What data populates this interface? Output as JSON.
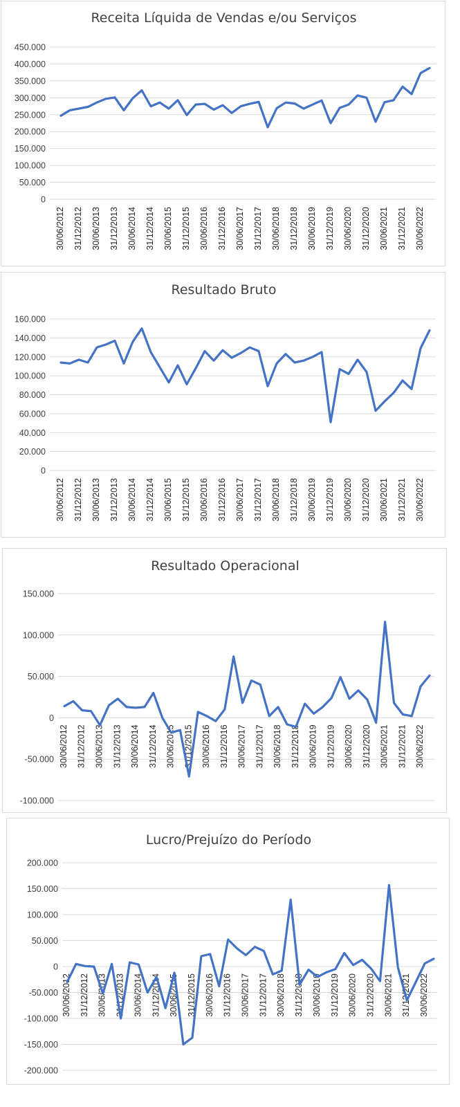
{
  "chart_data": [
    {
      "type": "line",
      "title": "Receita Líquida de Vendas e/ou Serviços",
      "xlabel": "",
      "ylabel": "",
      "ylim": [
        0,
        450000
      ],
      "grid": true,
      "y_ticks": [
        "450.000",
        "400.000",
        "350.000",
        "300.000",
        "250.000",
        "200.000",
        "150.000",
        "100.000",
        "50.000",
        "0"
      ],
      "y_tick_values": [
        450000,
        400000,
        350000,
        300000,
        250000,
        200000,
        150000,
        100000,
        50000,
        0
      ],
      "x_tick_labels": [
        "30/06/2012",
        "31/12/2012",
        "30/06/2013",
        "31/12/2013",
        "30/06/2014",
        "31/12/2014",
        "30/06/2015",
        "31/12/2015",
        "30/06/2016",
        "31/12/2016",
        "30/06/2017",
        "31/12/2017",
        "30/06/2018",
        "31/12/2018",
        "30/06/2019",
        "31/12/2019",
        "30/06/2020",
        "31/12/2020",
        "30/06/2021",
        "31/12/2021",
        "30/06/2022"
      ],
      "series": [
        {
          "name": "Receita Líquida de Vendas e/ou Serviços",
          "values": [
            247000,
            263000,
            268000,
            273000,
            286000,
            297000,
            301000,
            263000,
            299000,
            322000,
            275000,
            286000,
            268000,
            293000,
            249000,
            280000,
            282000,
            265000,
            278000,
            255000,
            275000,
            282000,
            288000,
            213000,
            269000,
            286000,
            283000,
            268000,
            280000,
            292000,
            225000,
            270000,
            280000,
            307000,
            300000,
            229000,
            287000,
            293000,
            333000,
            311000,
            373000,
            388000
          ]
        }
      ]
    },
    {
      "type": "line",
      "title": "Resultado Bruto",
      "xlabel": "",
      "ylabel": "",
      "ylim": [
        0,
        160000
      ],
      "grid": true,
      "y_ticks": [
        "160.000",
        "140.000",
        "120.000",
        "100.000",
        "80.000",
        "60.000",
        "40.000",
        "20.000",
        "0"
      ],
      "y_tick_values": [
        160000,
        140000,
        120000,
        100000,
        80000,
        60000,
        40000,
        20000,
        0
      ],
      "x_tick_labels": [
        "30/06/2012",
        "31/12/2012",
        "30/06/2013",
        "31/12/2013",
        "30/06/2014",
        "31/12/2014",
        "30/06/2015",
        "31/12/2015",
        "30/06/2016",
        "31/12/2016",
        "30/06/2017",
        "31/12/2017",
        "30/06/2018",
        "31/12/2018",
        "30/06/2019",
        "31/12/2019",
        "30/06/2020",
        "31/12/2020",
        "30/06/2021",
        "31/12/2021",
        "30/06/2022"
      ],
      "series": [
        {
          "name": "Resultado Bruto",
          "values": [
            114000,
            113000,
            117000,
            114000,
            130000,
            133000,
            137000,
            113000,
            136000,
            150000,
            125000,
            109000,
            93000,
            111000,
            91000,
            108000,
            126000,
            116000,
            127000,
            119000,
            124000,
            130000,
            126000,
            89000,
            113000,
            123000,
            114000,
            116000,
            120000,
            125000,
            51000,
            107000,
            102000,
            117000,
            104000,
            63000,
            73000,
            82000,
            95000,
            86000,
            129000,
            148000
          ]
        }
      ]
    },
    {
      "type": "line",
      "title": "Resultado Operacional",
      "xlabel": "",
      "ylabel": "",
      "ylim": [
        -100000,
        150000
      ],
      "grid": true,
      "y_ticks": [
        "150.000",
        "100.000",
        "50.000",
        "0",
        "-50.000",
        "-100.000"
      ],
      "y_tick_values": [
        150000,
        100000,
        50000,
        0,
        -50000,
        -100000
      ],
      "x_tick_labels": [
        "30/06/2012",
        "31/12/2012",
        "30/06/2013",
        "31/12/2013",
        "30/06/2014",
        "31/12/2014",
        "30/06/2015",
        "31/12/2015",
        "30/06/2016",
        "31/12/2016",
        "30/06/2017",
        "31/12/2017",
        "30/06/2018",
        "31/12/2018",
        "30/06/2019",
        "31/12/2019",
        "30/06/2020",
        "31/12/2020",
        "30/06/2021",
        "31/12/2021",
        "30/06/2022"
      ],
      "series": [
        {
          "name": "Resultado Operacional",
          "values": [
            14000,
            20000,
            9000,
            8000,
            -9000,
            15000,
            23000,
            13000,
            12000,
            13000,
            30000,
            0,
            -18000,
            -15000,
            -71000,
            7000,
            2000,
            -4000,
            10000,
            74000,
            18000,
            45000,
            40000,
            2000,
            13000,
            -8000,
            -11000,
            17000,
            5000,
            13000,
            24000,
            49000,
            23000,
            33000,
            22000,
            -6000,
            116000,
            18000,
            4000,
            2000,
            38000,
            51000
          ]
        }
      ]
    },
    {
      "type": "line",
      "title": "Lucro/Prejuízo do Período",
      "xlabel": "",
      "ylabel": "",
      "ylim": [
        -200000,
        200000
      ],
      "grid": true,
      "y_ticks": [
        "200.000",
        "150.000",
        "100.000",
        "50.000",
        "0",
        "-50.000",
        "-100.000",
        "-150.000",
        "-200.000"
      ],
      "y_tick_values": [
        200000,
        150000,
        100000,
        50000,
        0,
        -50000,
        -100000,
        -150000,
        -200000
      ],
      "x_tick_labels": [
        "30/06/2012",
        "31/12/2012",
        "30/06/2013",
        "31/12/2013",
        "30/06/2014",
        "31/12/2014",
        "30/06/2015",
        "31/12/2015",
        "30/06/2016",
        "31/12/2016",
        "30/06/2017",
        "31/12/2017",
        "30/06/2018",
        "31/12/2018",
        "30/06/2019",
        "31/12/2019",
        "30/06/2020",
        "31/12/2020",
        "30/06/2021",
        "31/12/2021",
        "30/06/2022"
      ],
      "series": [
        {
          "name": "Lucro/Prejuízo do Período",
          "values": [
            -30000,
            5000,
            1000,
            0,
            -52000,
            5000,
            -100000,
            8000,
            4000,
            -50000,
            -20000,
            -80000,
            -12000,
            -150000,
            -137000,
            20000,
            24000,
            -38000,
            52000,
            35000,
            22000,
            38000,
            30000,
            -15000,
            -8000,
            129000,
            -35000,
            -6000,
            -20000,
            -11000,
            -5000,
            26000,
            3000,
            13000,
            -4000,
            -28000,
            157000,
            -2000,
            -65000,
            -30000,
            6000,
            15000
          ]
        }
      ]
    }
  ]
}
